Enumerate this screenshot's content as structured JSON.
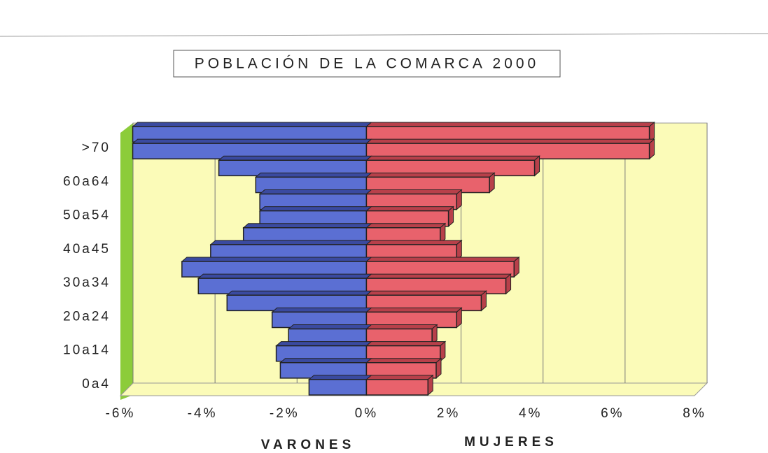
{
  "chart_data": {
    "type": "bar",
    "orientation": "horizontal",
    "title": "POBLACIÓN DE LA COMARCA 2000",
    "categories": [
      "0a4",
      null,
      "10a14",
      null,
      "20a24",
      null,
      "30a34",
      null,
      "40a45",
      null,
      "50a54",
      null,
      "60a64",
      null,
      ">70",
      null
    ],
    "series": [
      {
        "name": "VARONES",
        "color": "#5b6fd3",
        "values": [
          -1.4,
          -2.1,
          -2.2,
          -1.9,
          -2.3,
          -3.4,
          -4.1,
          -4.5,
          -3.8,
          -3.0,
          -2.6,
          -2.6,
          -2.7,
          -3.6,
          -5.7,
          -5.7
        ]
      },
      {
        "name": "MUJERES",
        "color": "#e8626c",
        "values": [
          1.5,
          1.7,
          1.8,
          1.6,
          2.2,
          2.8,
          3.4,
          3.6,
          2.2,
          1.8,
          2.0,
          2.2,
          3.0,
          4.1,
          6.9,
          6.9
        ]
      }
    ],
    "xlim": [
      -6,
      8
    ],
    "xticks": [
      {
        "value": -6,
        "label": "-6%"
      },
      {
        "value": -4,
        "label": "-4%"
      },
      {
        "value": -2,
        "label": "-2%"
      },
      {
        "value": 0,
        "label": "0%"
      },
      {
        "value": 2,
        "label": "2%"
      },
      {
        "value": 4,
        "label": "4%"
      },
      {
        "value": 6,
        "label": "6%"
      },
      {
        "value": 8,
        "label": "8%"
      }
    ],
    "grid": true
  }
}
